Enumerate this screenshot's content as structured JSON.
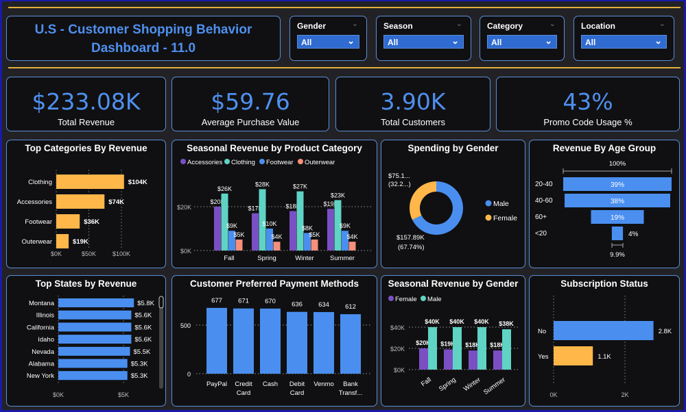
{
  "header": {
    "title_line1": "U.S - Customer Shopping Behavior",
    "title_line2": "Dashboard - 11.0"
  },
  "slicers": [
    {
      "label": "Gender",
      "value": "All"
    },
    {
      "label": "Season",
      "value": "All"
    },
    {
      "label": "Category",
      "value": "All"
    },
    {
      "label": "Location",
      "value": "All"
    }
  ],
  "kpis": [
    {
      "value": "$233.08K",
      "label": "Total Revenue"
    },
    {
      "value": "$59.76",
      "label": "Average Purchase Value"
    },
    {
      "value": "3.90K",
      "label": "Total Customers"
    },
    {
      "value": "43%",
      "label": "Promo Code Usage %"
    }
  ],
  "colors": {
    "blue": "#4a8ff0",
    "gold": "#ffb74a",
    "purple": "#7b4fc4",
    "teal": "#5fd4c4",
    "salmon": "#f6907a"
  },
  "chart_data": [
    {
      "id": "top_categories",
      "type": "bar",
      "orientation": "horizontal",
      "title": "Top Categories By Revenue",
      "categories": [
        "Clothing",
        "Accessories",
        "Footwear",
        "Outerwear"
      ],
      "values": [
        104,
        74,
        36,
        19
      ],
      "labels": [
        "$104K",
        "$74K",
        "$36K",
        "$19K"
      ],
      "xticks": [
        "$0K",
        "$50K",
        "$100K"
      ],
      "xlim": [
        0,
        100
      ]
    },
    {
      "id": "seasonal_category",
      "type": "bar",
      "title": "Seasonal Revenue by Product Category",
      "categories": [
        "Fall",
        "Spring",
        "Winter",
        "Summer"
      ],
      "series": [
        {
          "name": "Accessories",
          "values": [
            20,
            17,
            18,
            19
          ],
          "labels": [
            "$20K",
            "$17K",
            "$18K",
            "$19K"
          ]
        },
        {
          "name": "Clothing",
          "values": [
            26,
            28,
            27,
            23
          ],
          "labels": [
            "$26K",
            "$28K",
            "$27K",
            "$23K"
          ]
        },
        {
          "name": "Footwear",
          "values": [
            9,
            10,
            8,
            9
          ],
          "labels": [
            "$9K",
            "$10K",
            "$8K",
            "$9K"
          ]
        },
        {
          "name": "Outerwear",
          "values": [
            5,
            4,
            5,
            4
          ],
          "labels": [
            "$5K",
            "$4K",
            "$5K",
            "$4K"
          ]
        }
      ],
      "yticks": [
        "$0K",
        "$20K"
      ],
      "ylim": [
        0,
        20
      ]
    },
    {
      "id": "gender_spending",
      "type": "pie",
      "title": "Spending by Gender",
      "slices": [
        {
          "name": "Male",
          "value": 157.89,
          "percent": 67.74,
          "label": "$157.89K",
          "pct_label": "(67.74%)"
        },
        {
          "name": "Female",
          "value": 75.1,
          "percent": 32.26,
          "label": "$75.1...",
          "pct_label": "(32.2...)"
        }
      ]
    },
    {
      "id": "age_group",
      "type": "bar",
      "subtype": "funnel",
      "title": "Revenue By Age Group",
      "categories": [
        "20-40",
        "40-60",
        "60+",
        "<20"
      ],
      "values": [
        39,
        38,
        19,
        4
      ],
      "labels": [
        "39%",
        "38%",
        "19%",
        "4%"
      ],
      "top_label": "100%",
      "bottom_label": "9.9%"
    },
    {
      "id": "top_states",
      "type": "bar",
      "orientation": "horizontal",
      "title": "Top States by Revenue",
      "categories": [
        "Montana",
        "Illinois",
        "California",
        "Idaho",
        "Nevada",
        "Alabama",
        "New York"
      ],
      "values": [
        5.8,
        5.6,
        5.6,
        5.6,
        5.5,
        5.3,
        5.3
      ],
      "labels": [
        "$5.8K",
        "$5.6K",
        "$5.6K",
        "$5.6K",
        "$5.5K",
        "$5.3K",
        "$5.3K"
      ],
      "xticks": [
        "$0K",
        "$5K"
      ],
      "xlim": [
        0,
        5
      ]
    },
    {
      "id": "payment_methods",
      "type": "bar",
      "title": "Customer Preferred Payment Methods",
      "categories": [
        "PayPal",
        "Credit Card",
        "Cash",
        "Debit Card",
        "Venmo",
        "Bank Transf..."
      ],
      "values": [
        677,
        671,
        670,
        636,
        634,
        612
      ],
      "yticks": [
        "0",
        "500"
      ],
      "ylim": [
        0,
        500
      ]
    },
    {
      "id": "seasonal_gender",
      "type": "bar",
      "title": "Seasonal Revenue by Gender",
      "categories": [
        "Fall",
        "Spring",
        "Winter",
        "Summer"
      ],
      "series": [
        {
          "name": "Female",
          "values": [
            20,
            19,
            18,
            18
          ],
          "labels": [
            "$20K",
            "$19K",
            "$18K",
            "$18K"
          ]
        },
        {
          "name": "Male",
          "values": [
            40,
            40,
            40,
            38
          ],
          "labels": [
            "$40K",
            "$40K",
            "$40K",
            "$38K"
          ]
        }
      ],
      "yticks": [
        "$0K",
        "$20K",
        "$40K"
      ],
      "ylim": [
        0,
        40
      ]
    },
    {
      "id": "subscription",
      "type": "bar",
      "orientation": "horizontal",
      "title": "Subscription Status",
      "categories": [
        "No",
        "Yes"
      ],
      "values": [
        2.8,
        1.1
      ],
      "labels": [
        "2.8K",
        "1.1K"
      ],
      "xticks": [
        "0K",
        "2K"
      ],
      "xlim": [
        0,
        2
      ]
    }
  ]
}
